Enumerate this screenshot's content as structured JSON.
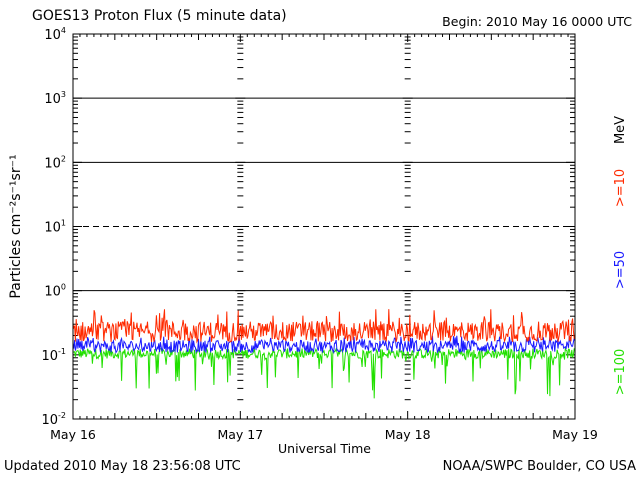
{
  "chart_data": {
    "type": "line",
    "title": "GOES13 Proton Flux (5 minute data)",
    "begin_label": "Begin: 2010 May 16 0000 UTC",
    "xlabel": "Universal Time",
    "ylabel": "Particles cm⁻²s⁻¹sr⁻¹",
    "yscale": "log",
    "ylim": [
      0.01,
      10000
    ],
    "xlim_days": [
      0,
      3
    ],
    "y_ticks": [
      {
        "base": "10",
        "exp": "4",
        "value": 10000
      },
      {
        "base": "10",
        "exp": "3",
        "value": 1000
      },
      {
        "base": "10",
        "exp": "2",
        "value": 100
      },
      {
        "base": "10",
        "exp": "1",
        "value": 10
      },
      {
        "base": "10",
        "exp": "0",
        "value": 1
      },
      {
        "base": "10",
        "exp": "-1",
        "value": 0.1
      },
      {
        "base": "10",
        "exp": "-2",
        "value": 0.01
      }
    ],
    "x_ticks": [
      "May 16",
      "May 17",
      "May 18",
      "May 19"
    ],
    "threshold_lines": [
      {
        "value": 1000,
        "style": "solid"
      },
      {
        "value": 100,
        "style": "solid"
      },
      {
        "value": 10,
        "style": "dashed"
      },
      {
        "value": 1,
        "style": "solid"
      }
    ],
    "legend": {
      "unit": "MeV",
      "items": [
        {
          "label": ">=10",
          "color": "#ff2a00"
        },
        {
          "label": ">=50",
          "color": "#1a1aff"
        },
        {
          "label": ">=100",
          "color": "#22e000"
        }
      ]
    },
    "series": [
      {
        "name": ">=10",
        "color": "#ff2a00",
        "baseline": 0.23,
        "noise_spread": 1.45,
        "spike_max": 0.52
      },
      {
        "name": ">=50",
        "color": "#1a1aff",
        "baseline": 0.135,
        "noise_spread": 1.25,
        "spike_max": 0.2
      },
      {
        "name": ">=100",
        "color": "#22e000",
        "baseline": 0.105,
        "noise_spread": 1.2,
        "dip_min": 0.02
      }
    ]
  },
  "footer": {
    "updated": "Updated 2010 May 18 23:56:08 UTC",
    "credit": "NOAA/SWPC Boulder, CO USA"
  }
}
